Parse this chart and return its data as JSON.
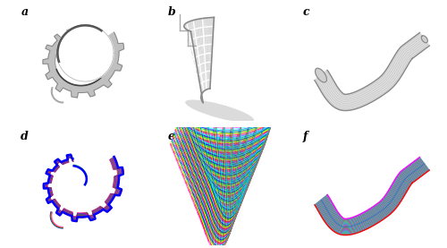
{
  "figure_width": 5.0,
  "figure_height": 2.77,
  "dpi": 100,
  "background_color": "#ffffff",
  "panel_labels": [
    "a",
    "b",
    "c",
    "d",
    "e",
    "f"
  ],
  "panel_label_fontsize": 9,
  "panel_label_color": "#000000",
  "layer_colors_d": [
    "#ff00ff",
    "#ff0000",
    "#00cc00",
    "#0000ff"
  ],
  "layer_colors_e": [
    "#ff00ff",
    "#ff0000",
    "#ffff00",
    "#00ff00",
    "#0000ff",
    "#00ffff"
  ],
  "layer_colors_f": [
    "#ff00ff",
    "#ff0000",
    "#00ff00",
    "#00ffff",
    "#0088ff"
  ]
}
